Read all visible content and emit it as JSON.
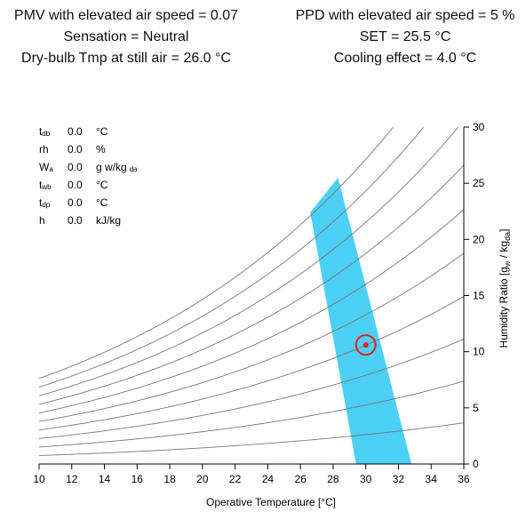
{
  "results": {
    "left": [
      "PMV with elevated air speed = 0.07",
      "Sensation = Neutral",
      "Dry-bulb Tmp at still air = 26.0 °C"
    ],
    "right": [
      "PPD with elevated air speed = 5 %",
      "SET = 25.5 °C",
      "Cooling effect = 4.0 °C"
    ]
  },
  "readout": [
    {
      "sym": "t",
      "sub": "db",
      "value": "0.0",
      "unit": "°C",
      "unit_sub": ""
    },
    {
      "sym": "rh",
      "sub": "",
      "value": "0.0",
      "unit": "%",
      "unit_sub": ""
    },
    {
      "sym": "W",
      "sub": "a",
      "value": "0.0",
      "unit": "g w/kg",
      "unit_sub": "da"
    },
    {
      "sym": "t",
      "sub": "wb",
      "value": "0.0",
      "unit": "°C",
      "unit_sub": ""
    },
    {
      "sym": "t",
      "sub": "dp",
      "value": "0.0",
      "unit": "°C",
      "unit_sub": ""
    },
    {
      "sym": "h",
      "sub": "",
      "value": "0.0",
      "unit": "kJ/kg",
      "unit_sub": ""
    }
  ],
  "chart_data": {
    "type": "area",
    "xlabel": "Operative Temperature [°C]",
    "ylabel": "Humidity Ratio [gw / kgda]",
    "ylabel_parts": {
      "main": "Humidity Ratio [g",
      "sub1": "w",
      "mid": " / kg",
      "sub2": "da",
      "end": "]"
    },
    "xlim": [
      10,
      36
    ],
    "ylim": [
      0,
      30
    ],
    "x_ticks": [
      10,
      12,
      14,
      16,
      18,
      20,
      22,
      24,
      26,
      28,
      30,
      32,
      34,
      36
    ],
    "y_ticks": [
      0,
      5,
      10,
      15,
      20,
      25,
      30
    ],
    "rh_curves_percent": [
      10,
      20,
      30,
      40,
      50,
      60,
      70,
      80,
      90,
      100
    ],
    "comfort_zone": [
      [
        29.4,
        0
      ],
      [
        32.8,
        0
      ],
      [
        28.3,
        25.5
      ],
      [
        26.6,
        22.4
      ]
    ],
    "comfort_zone_color": "#4dd0f7",
    "point": {
      "x": 30.0,
      "y": 10.6
    },
    "point_color": "#e02020",
    "curve_color": "#777777"
  }
}
